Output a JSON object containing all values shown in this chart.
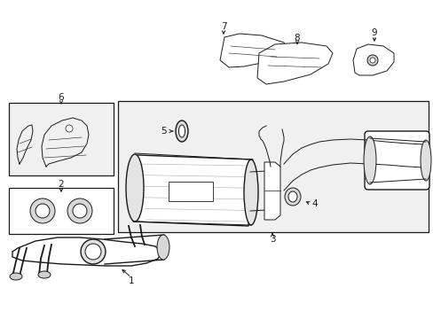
{
  "bg_color": "#ffffff",
  "line_color": "#1a1a1a",
  "fill_light": "#f0f0f0",
  "figsize": [
    4.89,
    3.6
  ],
  "dpi": 100
}
